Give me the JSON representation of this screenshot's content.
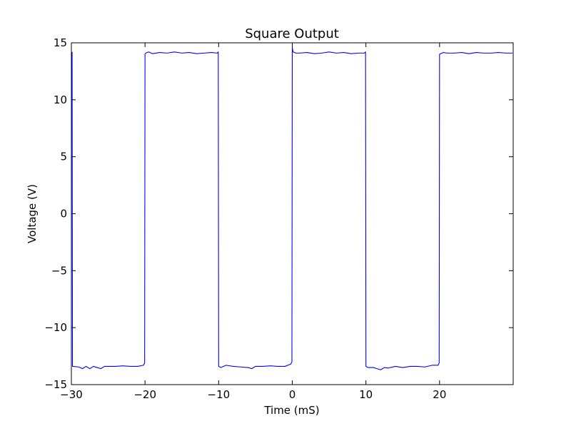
{
  "chart_data": {
    "type": "line",
    "title": "Square Output",
    "xlabel": "Time (mS)",
    "ylabel": "Voltage (V)",
    "xlim": [
      -30,
      30
    ],
    "ylim": [
      -15,
      15
    ],
    "xticks": [
      -30,
      -20,
      -10,
      0,
      10,
      20
    ],
    "xtick_labels": [
      "−30",
      "−20",
      "−10",
      "0",
      "10",
      "20"
    ],
    "yticks": [
      -15,
      -10,
      -5,
      0,
      5,
      10,
      15
    ],
    "ytick_labels": [
      "−15",
      "−10",
      "−5",
      "0",
      "5",
      "10",
      "15"
    ],
    "grid": false,
    "colors": {
      "series": "#0000ff",
      "axes": "#000000",
      "background": "#ffffff"
    },
    "series": [
      {
        "x": [
          -29.9,
          -29.85,
          -29.8,
          -29.0,
          -28.5,
          -28.0,
          -27.5,
          -27.0,
          -26.5,
          -26.0,
          -25.5,
          -25.0,
          -24.0,
          -23.0,
          -22.0,
          -21.0,
          -20.2,
          -20.05,
          -20.0,
          -19.9,
          -19.5,
          -19.0,
          -18.0,
          -17.0,
          -16.0,
          -15.0,
          -14.0,
          -13.0,
          -12.0,
          -11.0,
          -10.2,
          -10.05,
          -10.0,
          -9.7,
          -9.0,
          -8.0,
          -7.0,
          -6.0,
          -5.5,
          -5.0,
          -4.0,
          -3.0,
          -2.0,
          -1.0,
          -0.2,
          -0.05,
          0.0,
          0.1,
          0.5,
          1.0,
          2.0,
          3.0,
          4.0,
          5.0,
          6.0,
          7.0,
          8.0,
          9.0,
          9.8,
          9.95,
          10.0,
          10.3,
          11.0,
          11.5,
          12.0,
          12.5,
          13.0,
          14.0,
          15.0,
          16.0,
          17.0,
          18.0,
          19.0,
          19.8,
          19.95,
          20.0,
          20.5,
          21.0,
          22.0,
          23.0,
          24.0,
          25.0,
          26.0,
          27.0,
          28.0,
          29.0,
          29.9
        ],
        "y": [
          14.2,
          -13.4,
          -13.4,
          -13.45,
          -13.6,
          -13.4,
          -13.6,
          -13.4,
          -13.5,
          -13.6,
          -13.4,
          -13.4,
          -13.4,
          -13.35,
          -13.4,
          -13.4,
          -13.3,
          -13.1,
          14.0,
          14.1,
          14.2,
          14.05,
          14.15,
          14.1,
          14.2,
          14.1,
          14.15,
          14.05,
          14.1,
          14.15,
          14.1,
          14.2,
          -13.4,
          -13.5,
          -13.3,
          -13.4,
          -13.45,
          -13.5,
          -13.6,
          -13.4,
          -13.4,
          -13.35,
          -13.4,
          -13.4,
          -13.2,
          -13.0,
          14.6,
          14.2,
          14.1,
          14.1,
          14.15,
          14.05,
          14.1,
          14.2,
          14.1,
          14.15,
          14.05,
          14.1,
          14.1,
          14.2,
          -13.4,
          -13.5,
          -13.5,
          -13.6,
          -13.7,
          -13.5,
          -13.55,
          -13.4,
          -13.5,
          -13.4,
          -13.4,
          -13.45,
          -13.3,
          -13.3,
          -13.1,
          14.0,
          14.15,
          14.1,
          14.1,
          14.15,
          14.05,
          14.15,
          14.1,
          14.1,
          14.15,
          14.1,
          14.1
        ]
      }
    ]
  }
}
